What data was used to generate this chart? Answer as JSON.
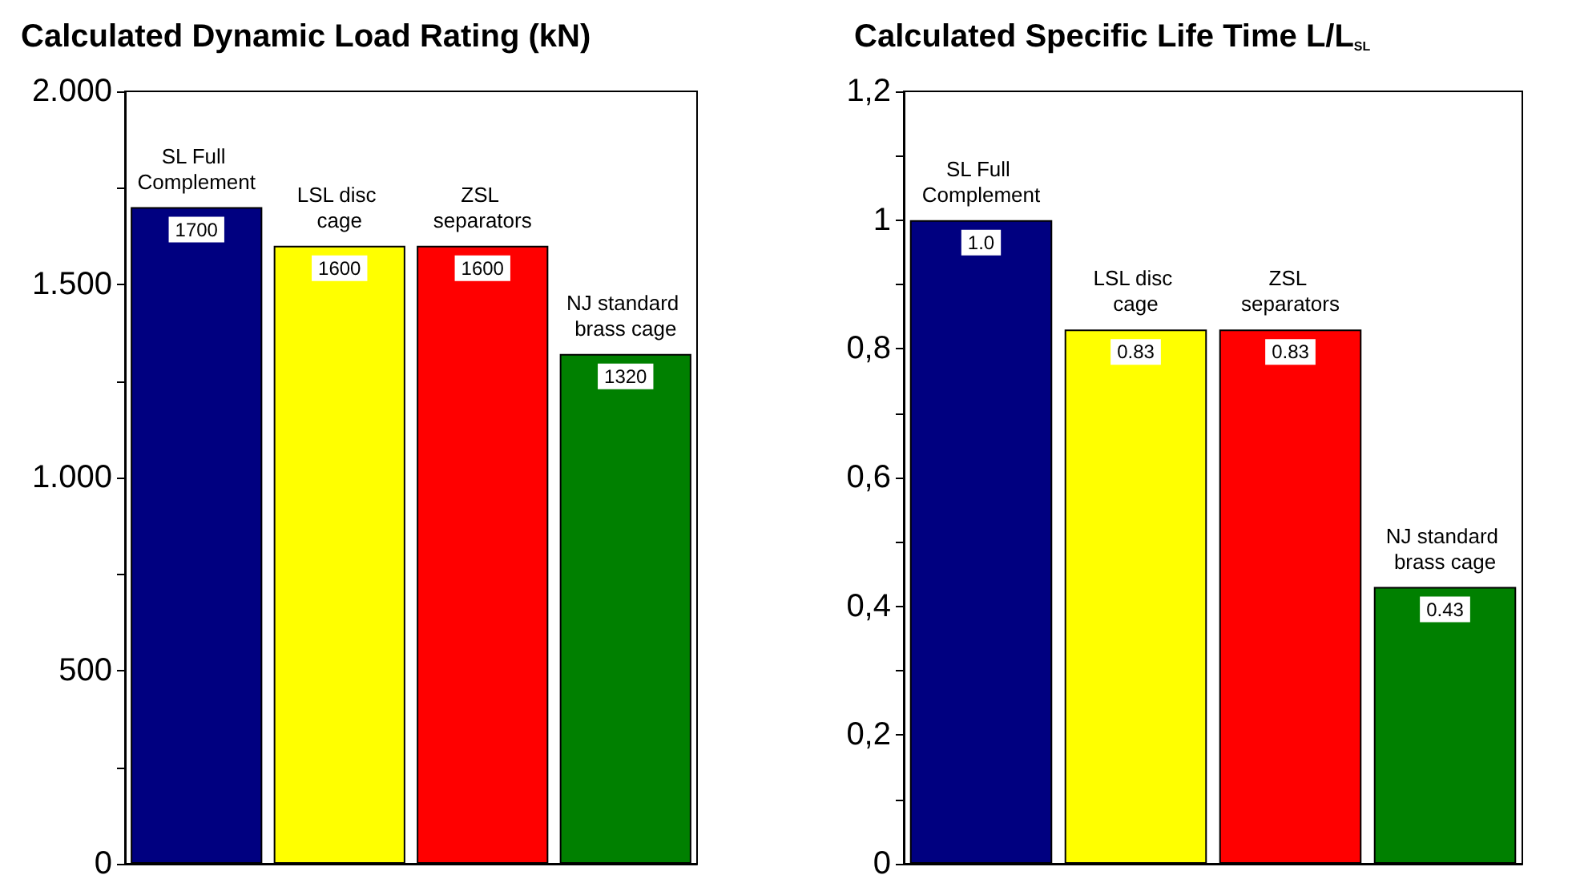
{
  "chart_data": [
    {
      "type": "bar",
      "title": "Calculated Dynamic Load Rating (kN)",
      "categories": [
        "SL Full Complement",
        "LSL disc cage",
        "ZSL separators",
        "NJ standard brass cage"
      ],
      "values": [
        1700,
        1600,
        1600,
        1320
      ],
      "colors": [
        "#000080",
        "#ffff00",
        "#ff0000",
        "#008000"
      ],
      "data_labels": true,
      "ylim": [
        0,
        2000
      ],
      "yticks": [
        0,
        {
          "value": 250,
          "label": null
        },
        {
          "value": 500,
          "label": "500"
        },
        {
          "value": 750,
          "label": null
        },
        {
          "value": 1000,
          "label": "1.000"
        },
        {
          "value": 1250,
          "label": null
        },
        {
          "value": 1500,
          "label": "1.500"
        },
        {
          "value": 1750,
          "label": null
        },
        {
          "value": 2000,
          "label": "2.000"
        }
      ],
      "grid": false
    },
    {
      "type": "bar",
      "title": "Calculated Specific Life Time L/L$_{SL}$",
      "categories": [
        "SL Full Complement",
        "LSL disc cage",
        "ZSL separators",
        "NJ standard brass cage"
      ],
      "values": [
        1,
        0.83,
        0.83,
        0.43
      ],
      "value_labels": [
        "1.0",
        "0.83",
        "0.83",
        "0.43"
      ],
      "colors": [
        "#000080",
        "#ffff00",
        "#ff0000",
        "#008000"
      ],
      "ylim": [
        0,
        1.2
      ],
      "yticks": [
        0,
        {
          "value": 0.1,
          "label": null
        },
        {
          "value": 0.2,
          "label": "0,2"
        },
        {
          "value": 0.3,
          "label": null
        },
        {
          "value": 0.4,
          "label": "0,4"
        },
        {
          "value": 0.5,
          "label": null
        },
        {
          "value": 0.6,
          "label": "0,6"
        },
        {
          "value": 0.7,
          "label": null
        },
        {
          "value": 0.8,
          "label": "0,8"
        },
        {
          "value": 0.9,
          "label": null
        },
        {
          "value": 1,
          "label": "1"
        },
        {
          "value": 1.1,
          "label": null
        },
        {
          "value": 1.2,
          "label": "1,2"
        }
      ],
      "grid": false
    }
  ]
}
